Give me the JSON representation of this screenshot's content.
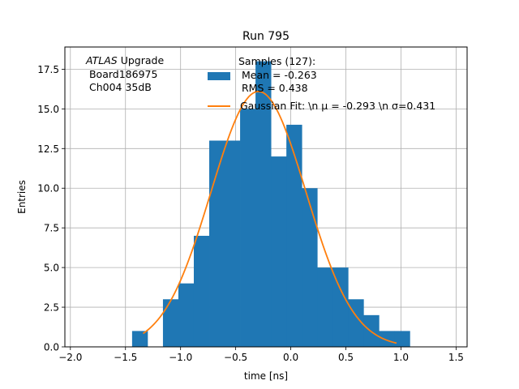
{
  "chart_data": {
    "type": "bar",
    "title": "Run 795",
    "xlabel": "time [ns]",
    "ylabel": "Entries",
    "xlim": [
      -2.05,
      1.6
    ],
    "ylim": [
      0,
      18.9
    ],
    "grid": true,
    "x_ticks": [
      -2.0,
      -1.5,
      -1.0,
      -0.5,
      0.0,
      0.5,
      1.0,
      1.5
    ],
    "x_tick_labels": [
      "−2.0",
      "−1.5",
      "−1.0",
      "−0.5",
      "0.0",
      "0.5",
      "1.0",
      "1.5"
    ],
    "y_ticks": [
      0,
      2.5,
      5,
      7.5,
      10,
      12.5,
      15,
      17.5
    ],
    "y_tick_labels": [
      "0.0",
      "2.5",
      "5.0",
      "7.5",
      "10.0",
      "12.5",
      "15.0",
      "17.5"
    ],
    "histogram": {
      "name": "Samples (127):\n Mean = -0.263\n RMS = 0.438",
      "color": "#1f77b4",
      "bin_edges": [
        -1.44,
        -1.3,
        -1.16,
        -1.02,
        -0.88,
        -0.74,
        -0.6,
        -0.46,
        -0.32,
        -0.18,
        -0.04,
        0.1,
        0.24,
        0.38,
        0.52,
        0.66,
        0.8,
        0.94,
        1.08
      ],
      "counts": [
        1,
        0,
        3,
        4,
        7,
        13,
        13,
        15,
        18,
        12,
        14,
        10,
        5,
        5,
        3,
        2,
        1,
        1
      ]
    },
    "fit": {
      "name": "Gaussian Fit: \\n $\\mu$ = -0.293 \\n $\\sigma$=0.431",
      "color": "#ff7f0e",
      "mu": -0.293,
      "sigma": 0.431,
      "amplitude": 16.1,
      "x_range": [
        -1.34,
        0.96
      ]
    },
    "legend": {
      "position": "top-center",
      "samples_lines": [
        "Samples (127):",
        " Mean = -0.263",
        " RMS = 0.438"
      ],
      "fit_label": "Gaussian Fit: \\n μ = -0.293 \\n σ=0.431"
    },
    "annotation": {
      "italic": "ATLAS",
      "rest": " Upgrade",
      "line2": " Board186975",
      "line3": " Ch004 35dB"
    }
  }
}
